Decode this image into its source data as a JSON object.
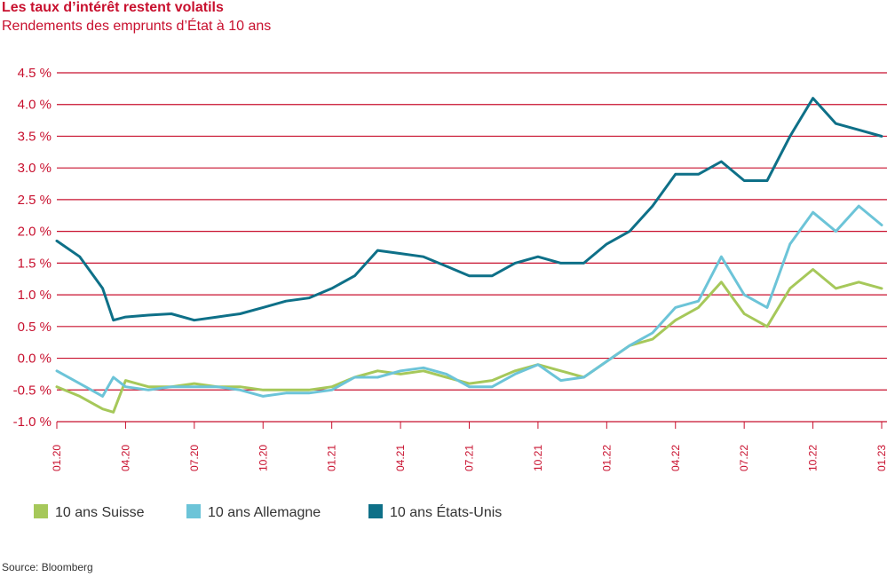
{
  "title": "Les taux d’intérêt restent volatils",
  "subtitle": "Rendements des emprunts d’État à 10 ans",
  "source": "Source: Bloomberg",
  "colors": {
    "accent": "#c8102e",
    "grid": "#c8102e",
    "suisse": "#a6c85a",
    "allemagne": "#6cc4d8",
    "usa": "#0e7088"
  },
  "chart_data": {
    "type": "line",
    "title": "Les taux d’intérêt restent volatils",
    "subtitle": "Rendements des emprunts d’État à 10 ans",
    "xlabel": "",
    "ylabel": "",
    "ylim": [
      -1.0,
      4.5
    ],
    "yticks": [
      4.5,
      4.0,
      3.5,
      3.0,
      2.5,
      2.0,
      1.5,
      1.0,
      0.5,
      0.0,
      -0.5,
      -1.0
    ],
    "ytick_labels": [
      "4.5 %",
      "4.0 %",
      "3.5 %",
      "3.0 %",
      "2.5 %",
      "2.0 %",
      "1.5 %",
      "1.0 %",
      "0.5 %",
      "0.0 %",
      "-0.5 %",
      "-1.0 %"
    ],
    "xlim": [
      "2020-01",
      "2023-01"
    ],
    "xticks": [
      "2020-01",
      "2020-04",
      "2020-07",
      "2020-10",
      "2021-01",
      "2021-04",
      "2021-07",
      "2021-10",
      "2022-01",
      "2022-04",
      "2022-07",
      "2022-10",
      "2023-01"
    ],
    "xtick_labels": [
      "01.20",
      "04.20",
      "07.20",
      "10.20",
      "01.21",
      "04.21",
      "07.21",
      "10.21",
      "01.22",
      "04.22",
      "07.22",
      "10.22",
      "01.23"
    ],
    "grid": true,
    "legend": "bottom",
    "series": [
      {
        "name": "10 ans Suisse",
        "x": [
          "2020-01",
          "2020-02",
          "2020-03",
          "2020-03-15",
          "2020-04",
          "2020-05",
          "2020-06",
          "2020-07",
          "2020-08",
          "2020-09",
          "2020-10",
          "2020-11",
          "2020-12",
          "2021-01",
          "2021-02",
          "2021-03",
          "2021-04",
          "2021-05",
          "2021-06",
          "2021-07",
          "2021-08",
          "2021-09",
          "2021-10",
          "2021-11",
          "2021-12",
          "2022-01",
          "2022-02",
          "2022-03",
          "2022-04",
          "2022-05",
          "2022-06",
          "2022-07",
          "2022-08",
          "2022-09",
          "2022-10",
          "2022-11",
          "2022-12",
          "2023-01"
        ],
        "values": [
          -0.45,
          -0.6,
          -0.8,
          -0.85,
          -0.35,
          -0.45,
          -0.45,
          -0.4,
          -0.45,
          -0.45,
          -0.5,
          -0.5,
          -0.5,
          -0.45,
          -0.3,
          -0.2,
          -0.25,
          -0.2,
          -0.3,
          -0.4,
          -0.35,
          -0.2,
          -0.1,
          -0.2,
          -0.3,
          -0.05,
          0.2,
          0.3,
          0.6,
          0.8,
          1.2,
          0.7,
          0.5,
          1.1,
          1.4,
          1.1,
          1.2,
          1.1
        ]
      },
      {
        "name": "10 ans Allemagne",
        "x": [
          "2020-01",
          "2020-02",
          "2020-03",
          "2020-03-15",
          "2020-04",
          "2020-05",
          "2020-06",
          "2020-07",
          "2020-08",
          "2020-09",
          "2020-10",
          "2020-11",
          "2020-12",
          "2021-01",
          "2021-02",
          "2021-03",
          "2021-04",
          "2021-05",
          "2021-06",
          "2021-07",
          "2021-08",
          "2021-09",
          "2021-10",
          "2021-11",
          "2021-12",
          "2022-01",
          "2022-02",
          "2022-03",
          "2022-04",
          "2022-05",
          "2022-06",
          "2022-07",
          "2022-08",
          "2022-09",
          "2022-10",
          "2022-11",
          "2022-12",
          "2023-01"
        ],
        "values": [
          -0.2,
          -0.4,
          -0.6,
          -0.3,
          -0.45,
          -0.5,
          -0.45,
          -0.45,
          -0.45,
          -0.5,
          -0.6,
          -0.55,
          -0.55,
          -0.5,
          -0.3,
          -0.3,
          -0.2,
          -0.15,
          -0.25,
          -0.45,
          -0.45,
          -0.25,
          -0.1,
          -0.35,
          -0.3,
          -0.05,
          0.2,
          0.4,
          0.8,
          0.9,
          1.6,
          1.0,
          0.8,
          1.8,
          2.3,
          2.0,
          2.4,
          2.1
        ]
      },
      {
        "name": "10 ans États-Unis",
        "x": [
          "2020-01",
          "2020-02",
          "2020-03",
          "2020-03-15",
          "2020-04",
          "2020-05",
          "2020-06",
          "2020-07",
          "2020-08",
          "2020-09",
          "2020-10",
          "2020-11",
          "2020-12",
          "2021-01",
          "2021-02",
          "2021-03",
          "2021-04",
          "2021-05",
          "2021-06",
          "2021-07",
          "2021-08",
          "2021-09",
          "2021-10",
          "2021-11",
          "2021-12",
          "2022-01",
          "2022-02",
          "2022-03",
          "2022-04",
          "2022-05",
          "2022-06",
          "2022-07",
          "2022-08",
          "2022-09",
          "2022-10",
          "2022-11",
          "2022-12",
          "2023-01"
        ],
        "values": [
          1.85,
          1.6,
          1.1,
          0.6,
          0.65,
          0.68,
          0.7,
          0.6,
          0.65,
          0.7,
          0.8,
          0.9,
          0.95,
          1.1,
          1.3,
          1.7,
          1.65,
          1.6,
          1.45,
          1.3,
          1.3,
          1.5,
          1.6,
          1.5,
          1.5,
          1.8,
          2.0,
          2.4,
          2.9,
          2.9,
          3.1,
          2.8,
          2.8,
          3.5,
          4.1,
          3.7,
          3.6,
          3.5
        ]
      }
    ]
  }
}
